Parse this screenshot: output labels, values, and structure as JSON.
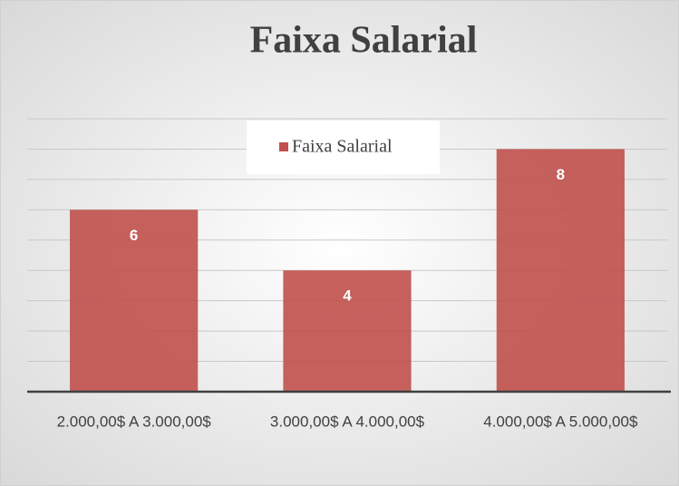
{
  "chart_data": {
    "type": "bar",
    "title": "Faixa Salarial",
    "categories": [
      "2.000,00$ A 3.000,00$",
      "3.000,00$ A 4.000,00$",
      "4.000,00$ A 5.000,00$"
    ],
    "series": [
      {
        "name": "Faixa Salarial",
        "color": "#c0504d",
        "values": [
          6,
          4,
          8
        ]
      }
    ],
    "ylim": [
      0,
      9
    ],
    "yticks": [
      0,
      1,
      2,
      3,
      4,
      5,
      6,
      7,
      8,
      9
    ],
    "grid": true,
    "legend": "top"
  }
}
